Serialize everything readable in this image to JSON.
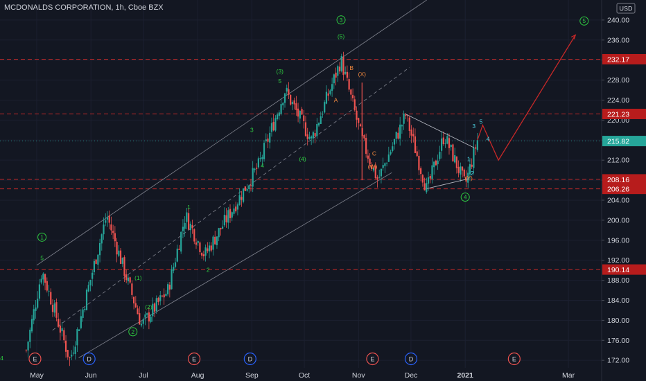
{
  "header": {
    "symbol_title": "MCDONALDS CORPORATION, 1h, Cboe BZX",
    "currency_button": "USD"
  },
  "axis": {
    "y_ticks": [
      "240.00",
      "236.00",
      "232.00",
      "228.00",
      "224.00",
      "220.00",
      "216.00",
      "212.00",
      "208.00",
      "204.00",
      "200.00",
      "196.00",
      "192.00",
      "188.00",
      "184.00",
      "180.00",
      "176.00",
      "172.00"
    ],
    "x_ticks": [
      "May",
      "Jun",
      "Jul",
      "Aug",
      "Sep",
      "Oct",
      "Nov",
      "Dec",
      "2021",
      "Mar"
    ]
  },
  "levels": [
    {
      "label": "232.17",
      "color": "#b71c1c"
    },
    {
      "label": "221.23",
      "color": "#b71c1c"
    },
    {
      "label": "215.82",
      "color": "#26a69a"
    },
    {
      "label": "208.16",
      "color": "#b71c1c"
    },
    {
      "label": "206.26",
      "color": "#b71c1c"
    },
    {
      "label": "190.14",
      "color": "#b71c1c"
    }
  ],
  "events": [
    "E",
    "D",
    "E",
    "D",
    "E",
    "D",
    "E"
  ],
  "wave_labels": [
    "1",
    "5",
    "3",
    "(5)",
    "(3)",
    "5",
    "3",
    "4",
    "(4)",
    "1",
    "2",
    "(1)",
    "(2)",
    "2",
    "4",
    "B",
    "A",
    "(X)",
    "C",
    "(W)",
    "3",
    "5",
    "4",
    "1",
    "2",
    "(Y)",
    "4",
    "5"
  ],
  "colors": {
    "up": "#26a69a",
    "down": "#ef5350",
    "green_label": "#2ecc40",
    "orange_label": "#f0883e",
    "cyan_label": "#4dd0e1",
    "projection": "#c62828"
  },
  "chart_data": {
    "type": "candlestick",
    "title": "MCDONALDS CORPORATION, 1h, Cboe BZX",
    "ylim": [
      170.5,
      244
    ],
    "y_unit": "USD",
    "x_range": [
      "2020-04-10",
      "2021-03-20"
    ],
    "key_prices": [
      {
        "date": "2020-04-25",
        "price": 174
      },
      {
        "date": "2020-05-04",
        "price": 190
      },
      {
        "date": "2020-05-20",
        "price": 172
      },
      {
        "date": "2020-06-10",
        "price": 201
      },
      {
        "date": "2020-06-30",
        "price": 179
      },
      {
        "date": "2020-07-15",
        "price": 186
      },
      {
        "date": "2020-07-25",
        "price": 201
      },
      {
        "date": "2020-08-05",
        "price": 193
      },
      {
        "date": "2020-09-05",
        "price": 211
      },
      {
        "date": "2020-09-20",
        "price": 226
      },
      {
        "date": "2020-10-05",
        "price": 216
      },
      {
        "date": "2020-10-22",
        "price": 232
      },
      {
        "date": "2020-11-03",
        "price": 216
      },
      {
        "date": "2020-11-12",
        "price": 208
      },
      {
        "date": "2020-11-28",
        "price": 221
      },
      {
        "date": "2020-12-10",
        "price": 206
      },
      {
        "date": "2020-12-20",
        "price": 217
      },
      {
        "date": "2021-01-01",
        "price": 207
      },
      {
        "date": "2021-01-08",
        "price": 216
      }
    ],
    "projection": [
      {
        "date": "2021-01-08",
        "price": 216
      },
      {
        "date": "2021-01-11",
        "price": 219
      },
      {
        "date": "2021-01-20",
        "price": 212
      },
      {
        "date": "2021-03-05",
        "price": 237
      }
    ],
    "horizontal_levels": [
      232.17,
      221.23,
      208.16,
      206.26,
      190.14
    ],
    "last_price": 215.82,
    "channel": {
      "lower": [
        [
          "2020-05-25",
          172.5
        ],
        [
          "2020-11-20",
          209.5
        ]
      ],
      "upper": [
        [
          "2020-05-01",
          191
        ],
        [
          "2020-12-10",
          244
        ]
      ]
    }
  }
}
